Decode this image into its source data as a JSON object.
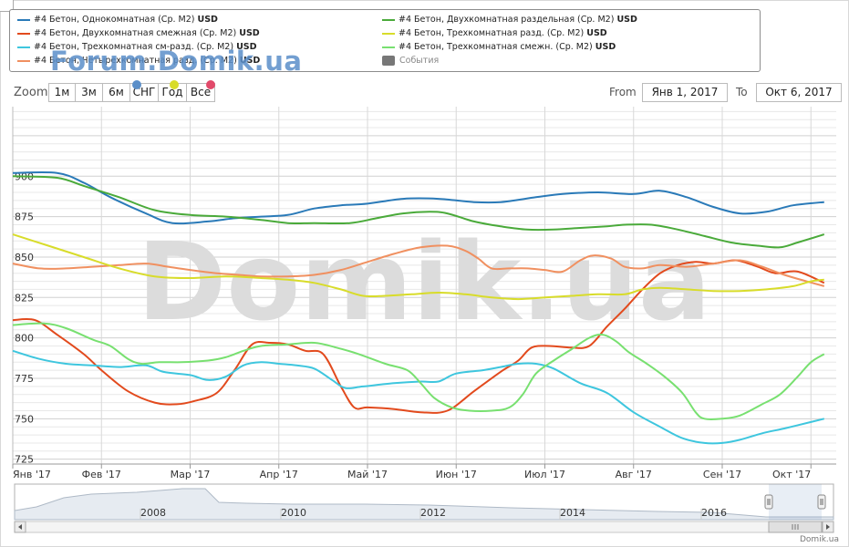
{
  "watermark_top": "Forum.Domik.ua",
  "watermark_center": "Domik.ua",
  "legend": {
    "items": [
      {
        "label": "#4 Бетон, Однокомнатная (Ср. М2)",
        "unit": "USD",
        "color": "#2a7ab8"
      },
      {
        "label": "#4 Бетон, Двухкомнатная смежная (Ср. М2)",
        "unit": "USD",
        "color": "#e24a1d"
      },
      {
        "label": "#4 Бетон, Трехкомнатная см-разд. (Ср. М2)",
        "unit": "USD",
        "color": "#3ec6de"
      },
      {
        "label": "#4 Бетон, Четырехкомнатная разд. (Ср. М2)",
        "unit": "USD",
        "color": "#f09060"
      },
      {
        "label": "#4 Бетон, Двухкомнатная раздельная (Ср. М2)",
        "unit": "USD",
        "color": "#4aaa3a"
      },
      {
        "label": "#4 Бетон, Трехкомнатная разд. (Ср. М2)",
        "unit": "USD",
        "color": "#d8dc2a"
      },
      {
        "label": "#4 Бетон, Трехкомнатная смежн. (Ср. М2)",
        "unit": "USD",
        "color": "#78e070"
      }
    ],
    "events_label": "События"
  },
  "zoom": {
    "label": "Zoom",
    "buttons": [
      "1м",
      "3м",
      "6м",
      "СНГ",
      "Год",
      "Все"
    ],
    "dot_colors": [
      "#5b8fc9",
      "#d8dc2a",
      "#e24a6a"
    ]
  },
  "range": {
    "from_label": "From",
    "from_value": "Янв 1, 2017",
    "to_label": "To",
    "to_value": "Окт 6, 2017"
  },
  "chart_data": {
    "type": "line",
    "ylim": [
      722,
      943
    ],
    "yticks": [
      725,
      750,
      775,
      800,
      825,
      850,
      875,
      900
    ],
    "xlabels": [
      "Янв '17",
      "Фев '17",
      "Мар '17",
      "Апр '17",
      "Май '17",
      "Июн '17",
      "Июл '17",
      "Авг '17",
      "Сен '17",
      "Окт '17"
    ],
    "xmax": 9.15,
    "series": [
      {
        "name": "Однокомнатная",
        "color": "#2a7ab8",
        "points": [
          [
            0,
            902
          ],
          [
            0.5,
            902
          ],
          [
            0.8,
            896
          ],
          [
            1.1,
            887
          ],
          [
            1.5,
            877
          ],
          [
            1.8,
            871
          ],
          [
            2.2,
            872
          ],
          [
            2.5,
            874
          ],
          [
            2.8,
            875
          ],
          [
            3.1,
            876
          ],
          [
            3.4,
            880
          ],
          [
            3.7,
            882
          ],
          [
            4.0,
            883
          ],
          [
            4.4,
            886
          ],
          [
            4.8,
            886
          ],
          [
            5.2,
            884
          ],
          [
            5.5,
            884
          ],
          [
            5.9,
            887
          ],
          [
            6.2,
            889
          ],
          [
            6.6,
            890
          ],
          [
            7.0,
            889
          ],
          [
            7.3,
            891
          ],
          [
            7.6,
            887
          ],
          [
            7.9,
            881
          ],
          [
            8.2,
            877
          ],
          [
            8.5,
            878
          ],
          [
            8.8,
            882
          ],
          [
            9.15,
            884
          ]
        ]
      },
      {
        "name": "Двухкомнатная смежная",
        "color": "#e24a1d",
        "points": [
          [
            0,
            811
          ],
          [
            0.25,
            811
          ],
          [
            0.5,
            802
          ],
          [
            0.8,
            790
          ],
          [
            1.0,
            780
          ],
          [
            1.3,
            767
          ],
          [
            1.6,
            760
          ],
          [
            1.85,
            759
          ],
          [
            2.05,
            761
          ],
          [
            2.3,
            766
          ],
          [
            2.5,
            780
          ],
          [
            2.7,
            796
          ],
          [
            2.9,
            797
          ],
          [
            3.1,
            796
          ],
          [
            3.3,
            792
          ],
          [
            3.5,
            790
          ],
          [
            3.7,
            770
          ],
          [
            3.85,
            757
          ],
          [
            4.0,
            757
          ],
          [
            4.3,
            756
          ],
          [
            4.6,
            754
          ],
          [
            4.9,
            755
          ],
          [
            5.2,
            767
          ],
          [
            5.5,
            779
          ],
          [
            5.7,
            786
          ],
          [
            5.85,
            794
          ],
          [
            6.05,
            795
          ],
          [
            6.3,
            794
          ],
          [
            6.5,
            795
          ],
          [
            6.7,
            807
          ],
          [
            6.9,
            818
          ],
          [
            7.1,
            830
          ],
          [
            7.3,
            840
          ],
          [
            7.5,
            845
          ],
          [
            7.7,
            847
          ],
          [
            7.9,
            846
          ],
          [
            8.15,
            848
          ],
          [
            8.4,
            844
          ],
          [
            8.6,
            840
          ],
          [
            8.85,
            841
          ],
          [
            9.15,
            834
          ]
        ]
      },
      {
        "name": "Трехкомнатная см-разд.",
        "color": "#3ec6de",
        "points": [
          [
            0,
            792
          ],
          [
            0.3,
            787
          ],
          [
            0.6,
            784
          ],
          [
            0.9,
            783
          ],
          [
            1.2,
            782
          ],
          [
            1.5,
            783
          ],
          [
            1.7,
            779
          ],
          [
            2.0,
            777
          ],
          [
            2.2,
            774
          ],
          [
            2.4,
            776
          ],
          [
            2.6,
            783
          ],
          [
            2.8,
            785
          ],
          [
            3.0,
            784
          ],
          [
            3.2,
            783
          ],
          [
            3.4,
            781
          ],
          [
            3.6,
            774
          ],
          [
            3.75,
            769
          ],
          [
            3.95,
            770
          ],
          [
            4.3,
            772
          ],
          [
            4.6,
            773
          ],
          [
            4.8,
            773
          ],
          [
            5.0,
            778
          ],
          [
            5.3,
            780
          ],
          [
            5.5,
            782
          ],
          [
            5.7,
            784
          ],
          [
            5.9,
            784
          ],
          [
            6.1,
            781
          ],
          [
            6.4,
            772
          ],
          [
            6.7,
            766
          ],
          [
            7.0,
            754
          ],
          [
            7.3,
            745
          ],
          [
            7.55,
            738
          ],
          [
            7.8,
            735
          ],
          [
            8.0,
            735
          ],
          [
            8.2,
            737
          ],
          [
            8.45,
            741
          ],
          [
            8.7,
            744
          ],
          [
            9.0,
            748
          ],
          [
            9.15,
            750
          ]
        ]
      },
      {
        "name": "Четырехкомнатная разд.",
        "color": "#f09060",
        "points": [
          [
            0,
            846
          ],
          [
            0.3,
            843
          ],
          [
            0.6,
            843
          ],
          [
            0.9,
            844
          ],
          [
            1.2,
            845
          ],
          [
            1.5,
            846
          ],
          [
            1.75,
            844
          ],
          [
            2.0,
            842
          ],
          [
            2.3,
            840
          ],
          [
            2.55,
            839
          ],
          [
            2.8,
            838
          ],
          [
            3.1,
            838
          ],
          [
            3.4,
            839
          ],
          [
            3.7,
            842
          ],
          [
            4.0,
            847
          ],
          [
            4.3,
            852
          ],
          [
            4.6,
            856
          ],
          [
            4.9,
            857
          ],
          [
            5.1,
            854
          ],
          [
            5.25,
            849
          ],
          [
            5.4,
            843
          ],
          [
            5.6,
            843
          ],
          [
            5.8,
            843
          ],
          [
            6.0,
            842
          ],
          [
            6.2,
            841
          ],
          [
            6.4,
            848
          ],
          [
            6.55,
            851
          ],
          [
            6.75,
            849
          ],
          [
            6.9,
            844
          ],
          [
            7.1,
            843
          ],
          [
            7.3,
            845
          ],
          [
            7.6,
            844
          ],
          [
            7.9,
            846
          ],
          [
            8.2,
            848
          ],
          [
            8.45,
            844
          ],
          [
            8.7,
            839
          ],
          [
            8.95,
            835
          ],
          [
            9.15,
            832
          ]
        ]
      },
      {
        "name": "Двухкомнатная раздельная",
        "color": "#4aaa3a",
        "points": [
          [
            0,
            900
          ],
          [
            0.5,
            899
          ],
          [
            0.8,
            894
          ],
          [
            1.2,
            887
          ],
          [
            1.6,
            879
          ],
          [
            2.0,
            876
          ],
          [
            2.4,
            875
          ],
          [
            2.8,
            873
          ],
          [
            3.1,
            871
          ],
          [
            3.4,
            871
          ],
          [
            3.8,
            871
          ],
          [
            4.1,
            874
          ],
          [
            4.4,
            877
          ],
          [
            4.7,
            878
          ],
          [
            4.9,
            877
          ],
          [
            5.2,
            872
          ],
          [
            5.5,
            869
          ],
          [
            5.8,
            867
          ],
          [
            6.1,
            867
          ],
          [
            6.4,
            868
          ],
          [
            6.7,
            869
          ],
          [
            6.9,
            870
          ],
          [
            7.2,
            870
          ],
          [
            7.5,
            867
          ],
          [
            7.8,
            863
          ],
          [
            8.1,
            859
          ],
          [
            8.4,
            857
          ],
          [
            8.65,
            856
          ],
          [
            8.85,
            859
          ],
          [
            9.15,
            864
          ]
        ]
      },
      {
        "name": "Трехкомнатная разд.",
        "color": "#d8dc2a",
        "points": [
          [
            0,
            864
          ],
          [
            0.4,
            857
          ],
          [
            0.8,
            850
          ],
          [
            1.2,
            843
          ],
          [
            1.6,
            838
          ],
          [
            2.0,
            837
          ],
          [
            2.4,
            838
          ],
          [
            2.8,
            837
          ],
          [
            3.1,
            836
          ],
          [
            3.4,
            834
          ],
          [
            3.7,
            830
          ],
          [
            3.95,
            826
          ],
          [
            4.2,
            826
          ],
          [
            4.5,
            827
          ],
          [
            4.8,
            828
          ],
          [
            5.1,
            827
          ],
          [
            5.4,
            825
          ],
          [
            5.7,
            824
          ],
          [
            6.0,
            825
          ],
          [
            6.3,
            826
          ],
          [
            6.6,
            827
          ],
          [
            6.9,
            827
          ],
          [
            7.1,
            830
          ],
          [
            7.3,
            831
          ],
          [
            7.6,
            830
          ],
          [
            7.9,
            829
          ],
          [
            8.2,
            829
          ],
          [
            8.5,
            830
          ],
          [
            8.8,
            832
          ],
          [
            9.0,
            835
          ],
          [
            9.15,
            836
          ]
        ]
      },
      {
        "name": "Трехкомнатная смежн.",
        "color": "#78e070",
        "points": [
          [
            0,
            808
          ],
          [
            0.35,
            809
          ],
          [
            0.6,
            806
          ],
          [
            0.9,
            799
          ],
          [
            1.1,
            795
          ],
          [
            1.3,
            787
          ],
          [
            1.45,
            784
          ],
          [
            1.65,
            785
          ],
          [
            1.9,
            785
          ],
          [
            2.2,
            786
          ],
          [
            2.4,
            788
          ],
          [
            2.6,
            792
          ],
          [
            2.8,
            795
          ],
          [
            3.1,
            796
          ],
          [
            3.4,
            797
          ],
          [
            3.65,
            794
          ],
          [
            3.9,
            790
          ],
          [
            4.2,
            784
          ],
          [
            4.45,
            780
          ],
          [
            4.6,
            772
          ],
          [
            4.75,
            763
          ],
          [
            4.95,
            757
          ],
          [
            5.15,
            755
          ],
          [
            5.4,
            755
          ],
          [
            5.6,
            757
          ],
          [
            5.75,
            765
          ],
          [
            5.9,
            778
          ],
          [
            6.1,
            786
          ],
          [
            6.3,
            793
          ],
          [
            6.5,
            800
          ],
          [
            6.65,
            802
          ],
          [
            6.8,
            798
          ],
          [
            6.95,
            791
          ],
          [
            7.15,
            784
          ],
          [
            7.35,
            776
          ],
          [
            7.55,
            766
          ],
          [
            7.7,
            754
          ],
          [
            7.8,
            750
          ],
          [
            8.0,
            750
          ],
          [
            8.2,
            752
          ],
          [
            8.45,
            759
          ],
          [
            8.65,
            765
          ],
          [
            8.85,
            776
          ],
          [
            9.0,
            785
          ],
          [
            9.15,
            790
          ]
        ]
      }
    ],
    "navigator": {
      "labels": [
        "2008",
        "2010",
        "2012",
        "2014",
        "2016"
      ]
    }
  },
  "footer": "Domik.ua"
}
